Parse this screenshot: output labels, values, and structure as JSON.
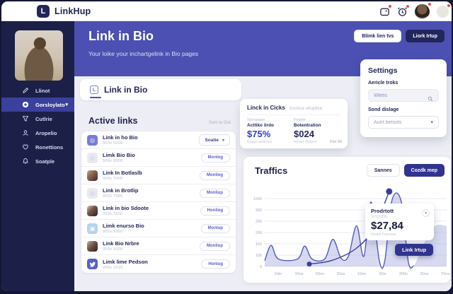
{
  "navbar": {
    "brand": "LinkHup"
  },
  "sidebar": {
    "items": [
      {
        "label": "Llinot",
        "icon": "pencil",
        "active": false
      },
      {
        "label": "Gorsloylato",
        "icon": "plus",
        "active": true
      },
      {
        "label": "Cutlrie",
        "icon": "funnel",
        "active": false
      },
      {
        "label": "Aropelio",
        "icon": "user",
        "active": false
      },
      {
        "label": "Ronettions",
        "icon": "heart",
        "active": false
      },
      {
        "label": "Soatple",
        "icon": "bell",
        "active": false
      }
    ]
  },
  "hero": {
    "title": "Link in Bio",
    "subtitle": "Your loike your inchartgelink in Bio pages",
    "button_light": "Blimk lien tvs",
    "button_dark": "Liork Irtup"
  },
  "tab": {
    "label": "Link in Bio"
  },
  "active_links": {
    "heading": "Active links",
    "sort_label": "Sort to Gst",
    "rows": [
      {
        "title": "Link in ho Bio",
        "subtitle": "900x 5000",
        "icon": "purple-link",
        "action": "Soatie",
        "action_type": "dropdown"
      },
      {
        "title": "Limk Bio Bio",
        "subtitle": "900x 0000",
        "icon": "gray",
        "action": "Monlog",
        "action_type": "pill"
      },
      {
        "title": "Link In Botlaslb",
        "subtitle": "900x 7000",
        "icon": "photo-1",
        "action": "Monliog",
        "action_type": "pill"
      },
      {
        "title": "Link in Brotlip",
        "subtitle": "9002 7000",
        "icon": "gray",
        "action": "Monliup",
        "action_type": "pill"
      },
      {
        "title": "Link in bio Sdoote",
        "subtitle": "900x 1000",
        "icon": "photo-2",
        "action": "Honliog",
        "action_type": "pill"
      },
      {
        "title": "Limk enurso Bio",
        "subtitle": "900x 1000",
        "icon": "blue",
        "action": "Monlup",
        "action_type": "pill"
      },
      {
        "title": "Link Bio Nrbre",
        "subtitle": "900x 9000",
        "icon": "photo-3",
        "action": "Monliup",
        "action_type": "pill"
      },
      {
        "title": "Limk lime Pedson",
        "subtitle": "908x 1010",
        "icon": "twitter",
        "action": "Honlug",
        "action_type": "pill"
      }
    ]
  },
  "stats_card": {
    "title": "Linck in Cicks",
    "subtitle": "Gontca otluplice",
    "cols": [
      {
        "kicker": "Storspator",
        "label": "Acttiko lirdo",
        "value": "$75%",
        "footnote": "Nuaga acidrired"
      },
      {
        "kicker": "Fetatie",
        "label": "Botentration",
        "value": "$024",
        "footnote": "Nosws Rekest"
      }
    ],
    "corner_note": "Fim 56"
  },
  "settings": {
    "title": "Settings",
    "search_label": "Aericle troks",
    "search_placeholder": "Wletis",
    "select_label": "Sond dislage",
    "select_value": "Autrt betsots"
  },
  "traffic": {
    "title": "Traffics",
    "button_light": "Sannes",
    "button_dark": "Cozdk mep",
    "tooltip": {
      "title": "Prodrtott",
      "kicker": "St 51585b",
      "value": "$27,84",
      "footnote": "Hoved Fotresse",
      "button": "Link Irtup"
    }
  },
  "chart_data": {
    "type": "area",
    "title": "Traffics",
    "xlabel": "",
    "ylabel": "",
    "ylim": [
      0,
      1150
    ],
    "grid": true,
    "legend": "none",
    "y_ticks": [
      "1000",
      "260",
      "200",
      "200",
      "160",
      "100",
      "0"
    ],
    "x_ticks": [
      "2dio",
      "30os",
      "50oo",
      "30us",
      "10oo",
      "30io",
      "300o",
      "30us",
      "T0us"
    ],
    "series": [
      {
        "name": "traffic-spikes",
        "type": "area",
        "color": "#4a51b8",
        "fill": "rgba(165,170,222,0.45)",
        "points": [
          [
            0.0,
            85
          ],
          [
            0.035,
            310
          ],
          [
            0.075,
            110
          ],
          [
            0.18,
            110
          ],
          [
            0.22,
            300
          ],
          [
            0.26,
            110
          ],
          [
            0.33,
            110
          ],
          [
            0.375,
            400
          ],
          [
            0.42,
            120
          ],
          [
            0.46,
            150
          ],
          [
            0.505,
            600
          ],
          [
            0.545,
            150
          ],
          [
            0.585,
            950
          ],
          [
            0.63,
            85
          ],
          [
            0.66,
            80
          ],
          [
            0.7,
            980
          ],
          [
            0.75,
            960
          ],
          [
            0.79,
            60
          ],
          [
            0.82,
            10
          ]
        ],
        "fill_extra": [
          [
            0.92,
            560
          ],
          [
            1.0,
            600
          ]
        ]
      },
      {
        "name": "trend",
        "type": "line",
        "color": "#383e9e",
        "points": [
          [
            0.245,
            35
          ],
          [
            0.37,
            90
          ],
          [
            0.5,
            260
          ],
          [
            0.6,
            560
          ],
          [
            0.684,
            1105
          ]
        ],
        "markers": [
          [
            0.245,
            35
          ],
          [
            0.684,
            1105
          ]
        ]
      }
    ]
  },
  "colors": {
    "page_bg": "#141733",
    "sidebar_bg": "#1c1f47",
    "hero_purple": "#4b50b2",
    "accent_navy": "#23265c",
    "accent_indigo": "#30348e",
    "stat_blue": "#2f3fc4",
    "badge_red": "#e04f4f",
    "content_bg": "#edeef5"
  }
}
